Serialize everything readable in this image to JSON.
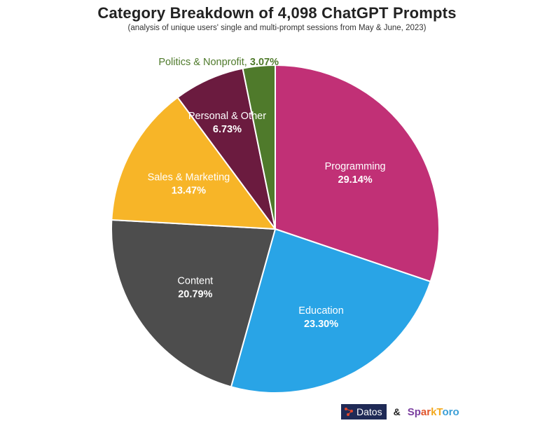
{
  "title": "Category Breakdown of 4,098 ChatGPT Prompts",
  "subtitle": "(analysis of unique users' single and multi-prompt sessions from May & June, 2023)",
  "chart_data": {
    "type": "pie",
    "title": "Category Breakdown of 4,098 ChatGPT Prompts",
    "subtitle": "(analysis of unique users' single and multi-prompt sessions from May & June, 2023)",
    "slices": [
      {
        "label": "Programming",
        "value": 29.14,
        "display": "29.14%",
        "color": "#c13076",
        "text_color": "#ffffff"
      },
      {
        "label": "Education",
        "value": 23.3,
        "display": "23.30%",
        "color": "#29a4e6",
        "text_color": "#ffffff"
      },
      {
        "label": "Content",
        "value": 20.79,
        "display": "20.79%",
        "color": "#4d4d4d",
        "text_color": "#ffffff"
      },
      {
        "label": "Sales & Marketing",
        "value": 13.47,
        "display": "13.47%",
        "color": "#f7b528",
        "text_color": "#ffffff"
      },
      {
        "label": "Personal & Other",
        "value": 6.73,
        "display": "6.73%",
        "color": "#6b1b3f",
        "text_color": "#ffffff"
      },
      {
        "label": "Politics & Nonprofit,",
        "value": 3.07,
        "display": "3.07%",
        "color": "#4f7a2b",
        "text_color": "#4f7a2b"
      }
    ]
  },
  "footer": {
    "datos": "Datos",
    "amp": "&",
    "spark_parts": [
      "Sp",
      "ar",
      "kT",
      "oro"
    ]
  }
}
